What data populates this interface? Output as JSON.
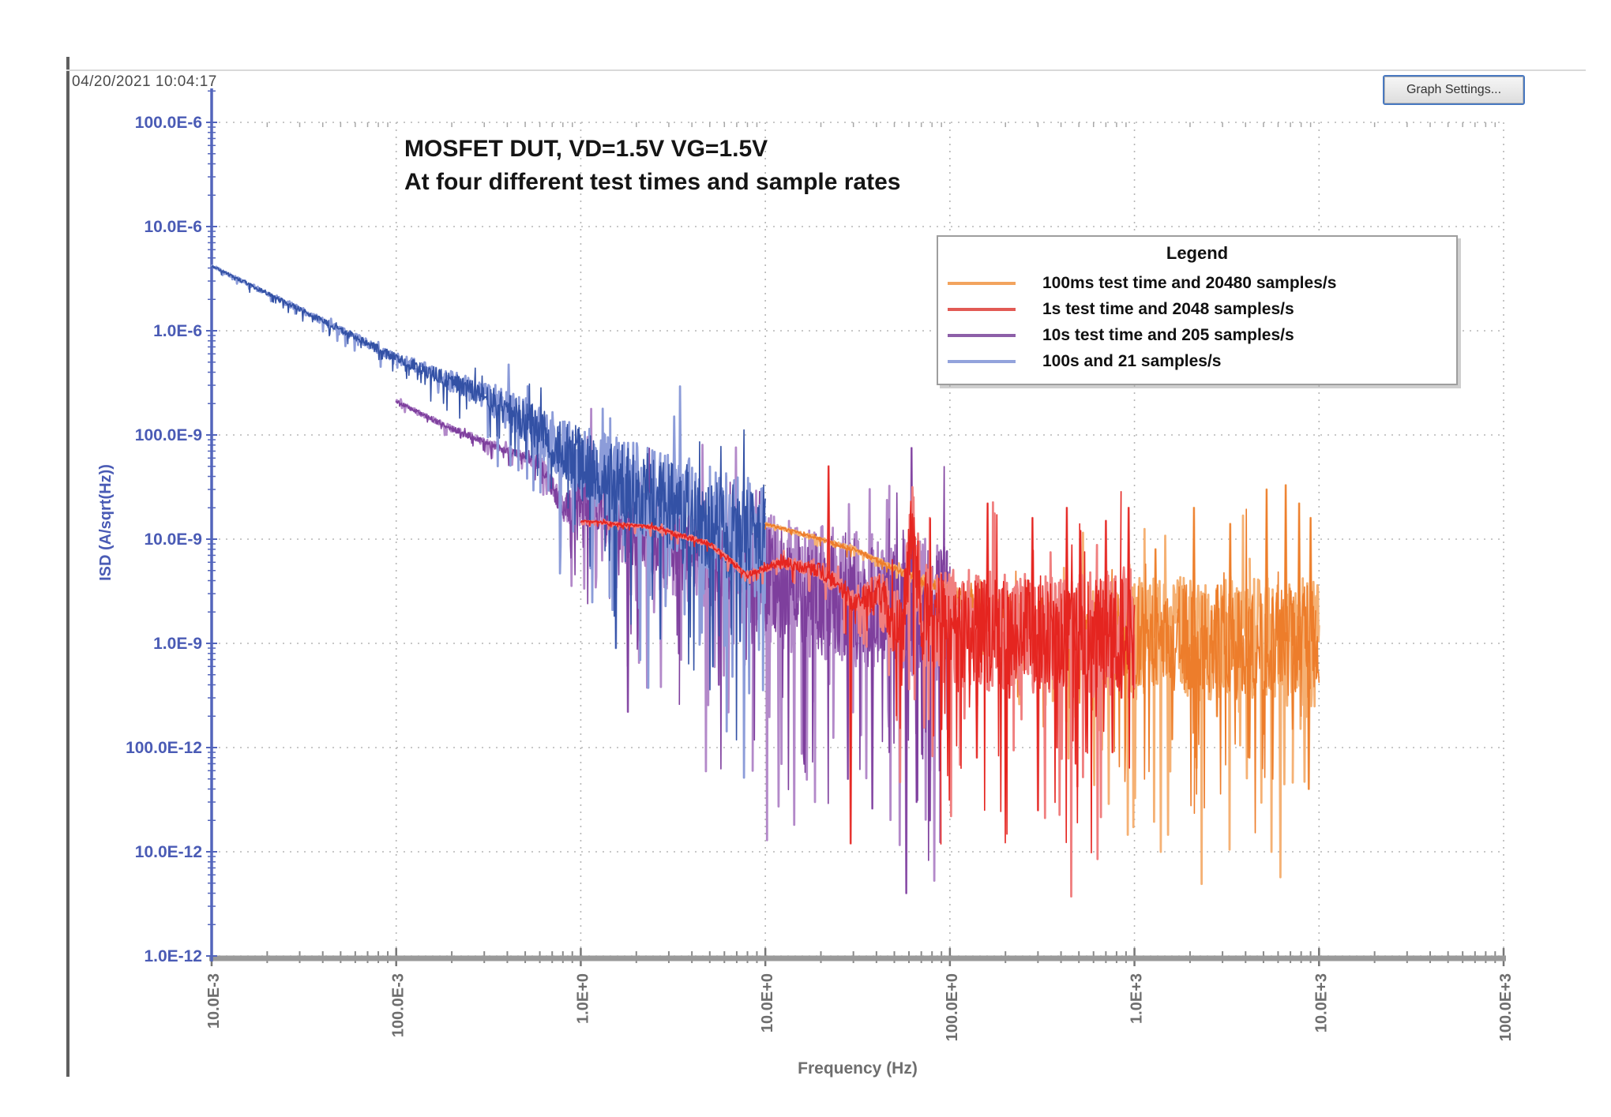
{
  "window": {
    "timestamp": "04/20/2021 10:04:17",
    "graph_settings_button": "Graph Settings..."
  },
  "chart_data": {
    "type": "line",
    "title_line1": "MOSFET DUT, VD=1.5V VG=1.5V",
    "title_line2": "At four different test times and sample rates",
    "xlabel": "Frequency (Hz)",
    "ylabel": "ISD (A/sqrt(Hz))",
    "x_scale": "log",
    "y_scale": "log",
    "xlim": [
      0.01,
      100000
    ],
    "ylim": [
      1e-12,
      0.0001
    ],
    "grid": true,
    "x_ticks": [
      {
        "value": 0.01,
        "label": "10.0E-3"
      },
      {
        "value": 0.1,
        "label": "100.0E-3"
      },
      {
        "value": 1,
        "label": "1.0E+0"
      },
      {
        "value": 10,
        "label": "10.0E+0"
      },
      {
        "value": 100,
        "label": "100.0E+0"
      },
      {
        "value": 1000,
        "label": "1.0E+3"
      },
      {
        "value": 10000,
        "label": "10.0E+3"
      },
      {
        "value": 100000,
        "label": "100.0E+3"
      }
    ],
    "y_ticks": [
      {
        "value": 1e-12,
        "label": "1.0E-12"
      },
      {
        "value": 1e-11,
        "label": "10.0E-12"
      },
      {
        "value": 1e-10,
        "label": "100.0E-12"
      },
      {
        "value": 1e-09,
        "label": "1.0E-9"
      },
      {
        "value": 1e-08,
        "label": "10.0E-9"
      },
      {
        "value": 1e-07,
        "label": "100.0E-9"
      },
      {
        "value": 1e-06,
        "label": "1.0E-6"
      },
      {
        "value": 1e-05,
        "label": "10.0E-6"
      },
      {
        "value": 0.0001,
        "label": "100.0E-6"
      }
    ],
    "legend": {
      "title": "Legend",
      "position": "top-right"
    },
    "axis_colors": {
      "y_axis": "#5365BC",
      "y_text": "#4A5BB5",
      "x_text": "#6E6E6E",
      "grid": "#b5b5b5",
      "x_baseline": "#9a9a9a"
    },
    "draw_order": [
      2,
      3,
      0,
      1
    ],
    "series": [
      {
        "name": "100ms test time and 20480 samples/s",
        "color": "#ED7D2B",
        "color_light": "#F5B174",
        "legend_color": "#F2A45E",
        "f_start": 10,
        "f_end": 10000,
        "seed": 7,
        "points_per_decade": 330,
        "trend": [
          [
            10,
            1.4e-08
          ],
          [
            18,
            1.05e-08
          ],
          [
            30,
            8e-09
          ],
          [
            60,
            4.5e-09
          ],
          [
            100,
            3e-09
          ],
          [
            200,
            1.8e-09
          ],
          [
            500,
            1.3e-09
          ],
          [
            1000,
            1.15e-09
          ],
          [
            10000,
            1.05e-09
          ]
        ],
        "noise_amp": [
          [
            10,
            0.012
          ],
          [
            60,
            0.03
          ],
          [
            150,
            0.12
          ],
          [
            400,
            0.32
          ],
          [
            1000,
            0.5
          ],
          [
            10000,
            0.55
          ]
        ],
        "spikes_up": [
          [
            1300,
            8e-09
          ],
          [
            2100,
            2e-08
          ],
          [
            3300,
            1.4e-08
          ],
          [
            5200,
            3e-08
          ],
          [
            6600,
            3.3e-08
          ],
          [
            7800,
            2.2e-08
          ],
          [
            9000,
            1.6e-08
          ]
        ],
        "spikes_down": [
          [
            1600,
            1.2e-10
          ],
          [
            2800,
            2e-10
          ],
          [
            4200,
            8e-11
          ],
          [
            5600,
            5e-11
          ],
          [
            7200,
            1.5e-10
          ],
          [
            8800,
            4e-11
          ],
          [
            9600,
            6e-10
          ]
        ]
      },
      {
        "name": "1s test time and 2048 samples/s",
        "color": "#E52520",
        "color_light": "#F07F7F",
        "legend_color": "#E25A54",
        "f_start": 1,
        "f_end": 1000,
        "seed": 3,
        "points_per_decade": 330,
        "trend": [
          [
            1,
            1.5e-08
          ],
          [
            2.5,
            1.3e-08
          ],
          [
            5,
            9e-09
          ],
          [
            8,
            4.5e-09
          ],
          [
            12,
            6e-09
          ],
          [
            20,
            5e-09
          ],
          [
            30,
            2.5e-09
          ],
          [
            40,
            3e-09
          ],
          [
            55,
            1.2e-09
          ],
          [
            62,
            1.3e-08
          ],
          [
            70,
            2e-09
          ],
          [
            100,
            1.4e-09
          ],
          [
            300,
            1.2e-09
          ],
          [
            1000,
            1.2e-09
          ]
        ],
        "noise_amp": [
          [
            1,
            0.01
          ],
          [
            10,
            0.03
          ],
          [
            30,
            0.1
          ],
          [
            70,
            0.45
          ],
          [
            100,
            0.5
          ],
          [
            1000,
            0.55
          ]
        ],
        "spikes_up": [
          [
            22,
            5e-08
          ],
          [
            160,
            2.2e-08
          ],
          [
            280,
            1.6e-08
          ],
          [
            430,
            2e-08
          ],
          [
            510,
            1.2e-08
          ],
          [
            700,
            1.5e-08
          ],
          [
            930,
            2e-08
          ]
        ],
        "spikes_down": [
          [
            29,
            1.2e-11
          ],
          [
            90,
            1.5e-10
          ],
          [
            140,
            8e-11
          ],
          [
            210,
            3e-10
          ],
          [
            300,
            2.5e-11
          ],
          [
            380,
            1e-10
          ],
          [
            480,
            7e-11
          ],
          [
            620,
            2e-10
          ],
          [
            760,
            9e-11
          ],
          [
            850,
            3e-10
          ],
          [
            980,
            4e-10
          ]
        ]
      },
      {
        "name": "10s test time and 205 samples/s",
        "color": "#7E3F9D",
        "color_light": "#B389C9",
        "legend_color": "#8D5FA8",
        "f_start": 0.1,
        "f_end": 100,
        "seed": 5,
        "points_per_decade": 320,
        "trend": [
          [
            0.1,
            2.1e-07
          ],
          [
            0.2,
            1.15e-07
          ],
          [
            0.4,
            7e-08
          ],
          [
            0.6,
            5.5e-08
          ],
          [
            0.8,
            2e-08
          ],
          [
            1.0,
            2.8e-08
          ],
          [
            1.6,
            1.6e-08
          ],
          [
            3,
            9e-09
          ],
          [
            6,
            5.5e-09
          ],
          [
            12,
            3.8e-09
          ],
          [
            30,
            2.6e-09
          ],
          [
            100,
            2e-09
          ]
        ],
        "noise_amp": [
          [
            0.1,
            0.015
          ],
          [
            0.5,
            0.04
          ],
          [
            0.8,
            0.12
          ],
          [
            1,
            0.28
          ],
          [
            3,
            0.45
          ],
          [
            10,
            0.55
          ],
          [
            100,
            0.6
          ]
        ],
        "spikes_up": [
          [
            62,
            7.5e-08
          ]
        ],
        "spikes_down": [
          [
            1.8,
            2.2e-10
          ],
          [
            3.4,
            8e-10
          ],
          [
            5.6,
            4e-10
          ],
          [
            8.5,
            1e-09
          ],
          [
            28,
            5e-11
          ],
          [
            38,
            2.6e-11
          ],
          [
            47,
            9e-11
          ],
          [
            58,
            4e-12
          ],
          [
            66,
            3e-11
          ],
          [
            78,
            2e-11
          ],
          [
            88,
            6e-11
          ],
          [
            97,
            1.5e-10
          ]
        ]
      },
      {
        "name": "100s and 21 samples/s",
        "color": "#3351A5",
        "color_light": "#8C9CD9",
        "legend_color": "#93A3DC",
        "f_start": 0.01,
        "f_end": 10,
        "seed": 9,
        "points_per_decade": 320,
        "trend": [
          [
            0.01,
            4.2e-06
          ],
          [
            0.03,
            1.6e-06
          ],
          [
            0.1,
            5.5e-07
          ],
          [
            0.3,
            2.4e-07
          ],
          [
            0.6,
            1.1e-07
          ],
          [
            1,
            5.5e-08
          ],
          [
            2,
            3e-08
          ],
          [
            4,
            1.8e-08
          ],
          [
            7,
            1.1e-08
          ],
          [
            10,
            8e-09
          ]
        ],
        "noise_amp": [
          [
            0.01,
            0.012
          ],
          [
            0.1,
            0.04
          ],
          [
            0.3,
            0.12
          ],
          [
            1,
            0.3
          ],
          [
            3,
            0.45
          ],
          [
            10,
            0.5
          ]
        ],
        "spikes_up": [],
        "spikes_down": [
          [
            1.55,
            9e-10
          ],
          [
            2.7,
            1.1e-09
          ],
          [
            5.2,
            6e-10
          ],
          [
            7.3,
            1.05e-09
          ]
        ]
      }
    ]
  }
}
